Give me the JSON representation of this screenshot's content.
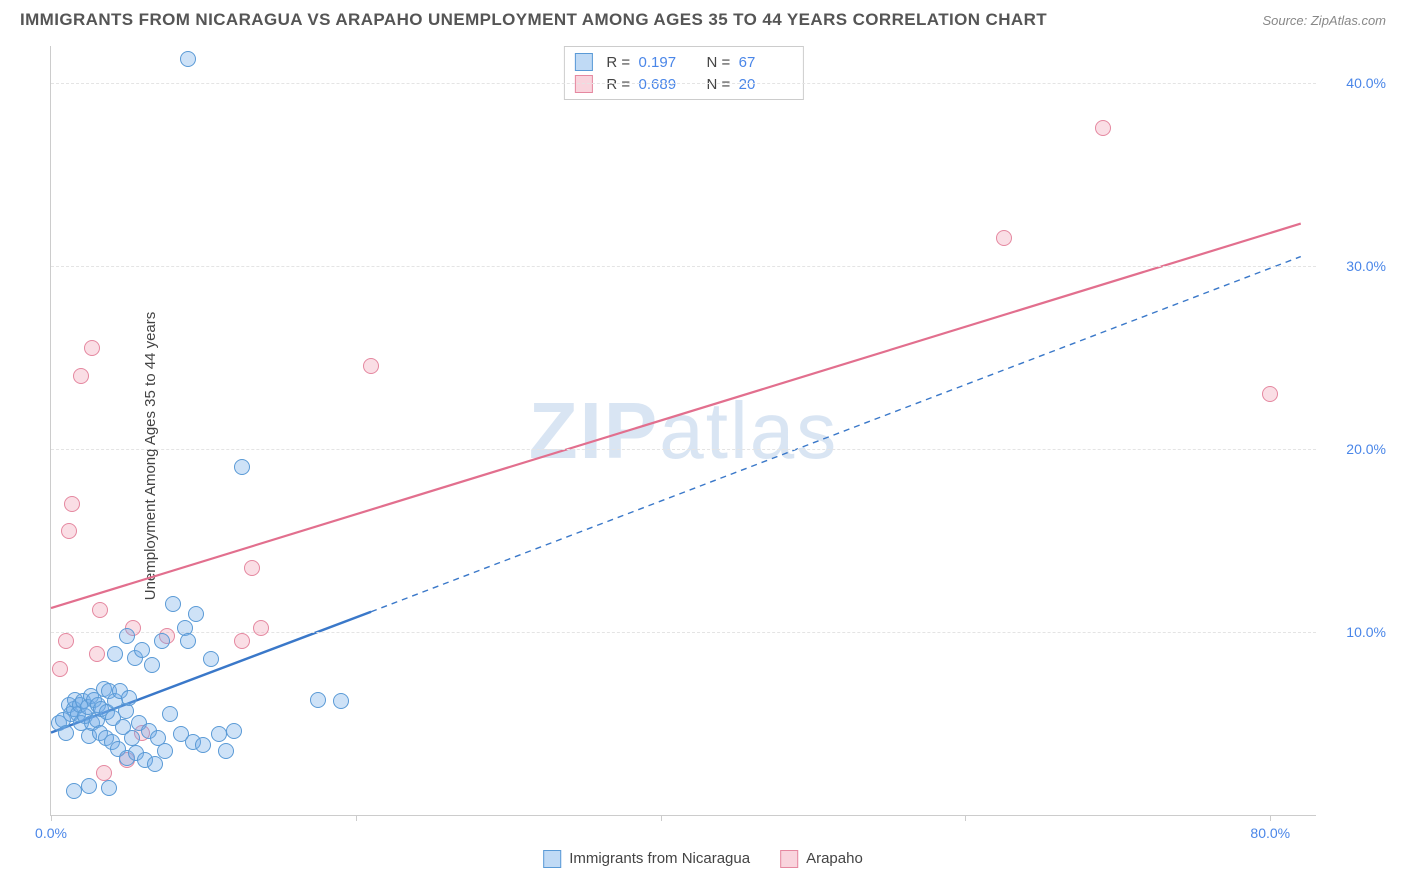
{
  "title": "IMMIGRANTS FROM NICARAGUA VS ARAPAHO UNEMPLOYMENT AMONG AGES 35 TO 44 YEARS CORRELATION CHART",
  "source": "Source: ZipAtlas.com",
  "ylabel": "Unemployment Among Ages 35 to 44 years",
  "watermark": "ZIPatlas",
  "chart": {
    "type": "scatter",
    "xlim": [
      0,
      83
    ],
    "ylim": [
      0,
      42
    ],
    "xticks": [
      0,
      20,
      40,
      60,
      80
    ],
    "xtick_labels": {
      "0": "0.0%",
      "80": "80.0%"
    },
    "yticks": [
      10,
      20,
      30,
      40
    ],
    "ytick_labels": [
      "10.0%",
      "20.0%",
      "30.0%",
      "40.0%"
    ],
    "grid_color": "#e4e4e4",
    "axis_color": "#cccccc",
    "background": "#ffffff",
    "marker_size": 16,
    "series": {
      "blue": {
        "label": "Immigrants from Nicaragua",
        "fill": "rgba(116,172,232,0.35)",
        "stroke": "#5a9ad6",
        "line_color": "#3a78c9",
        "points": [
          [
            0.5,
            5.0
          ],
          [
            0.8,
            5.2
          ],
          [
            1.0,
            4.5
          ],
          [
            1.2,
            6.0
          ],
          [
            1.3,
            5.5
          ],
          [
            1.5,
            5.8
          ],
          [
            1.6,
            6.3
          ],
          [
            1.8,
            5.5
          ],
          [
            1.9,
            6.0
          ],
          [
            2.0,
            5.0
          ],
          [
            2.1,
            6.2
          ],
          [
            2.2,
            5.4
          ],
          [
            2.4,
            5.9
          ],
          [
            2.5,
            4.3
          ],
          [
            2.6,
            6.5
          ],
          [
            2.7,
            5.0
          ],
          [
            2.8,
            6.3
          ],
          [
            3.0,
            5.2
          ],
          [
            3.1,
            6.0
          ],
          [
            3.2,
            4.5
          ],
          [
            3.3,
            5.8
          ],
          [
            3.5,
            6.9
          ],
          [
            3.6,
            4.2
          ],
          [
            3.7,
            5.6
          ],
          [
            3.8,
            6.8
          ],
          [
            4.0,
            4.0
          ],
          [
            4.1,
            5.3
          ],
          [
            4.2,
            6.2
          ],
          [
            4.4,
            3.6
          ],
          [
            4.5,
            6.8
          ],
          [
            4.7,
            4.8
          ],
          [
            4.9,
            5.7
          ],
          [
            5.0,
            3.1
          ],
          [
            5.1,
            6.4
          ],
          [
            5.3,
            4.2
          ],
          [
            5.5,
            8.6
          ],
          [
            5.6,
            3.4
          ],
          [
            5.8,
            5.0
          ],
          [
            6.0,
            9.0
          ],
          [
            6.2,
            3.0
          ],
          [
            6.4,
            4.6
          ],
          [
            6.6,
            8.2
          ],
          [
            6.8,
            2.8
          ],
          [
            7.0,
            4.2
          ],
          [
            7.3,
            9.5
          ],
          [
            7.5,
            3.5
          ],
          [
            7.8,
            5.5
          ],
          [
            8.0,
            11.5
          ],
          [
            8.5,
            4.4
          ],
          [
            8.8,
            10.2
          ],
          [
            9.0,
            9.5
          ],
          [
            9.3,
            4.0
          ],
          [
            9.5,
            11.0
          ],
          [
            10.0,
            3.8
          ],
          [
            10.5,
            8.5
          ],
          [
            11.0,
            4.4
          ],
          [
            11.5,
            3.5
          ],
          [
            12.0,
            4.6
          ],
          [
            17.5,
            6.3
          ],
          [
            19.0,
            6.2
          ],
          [
            9.0,
            41.3
          ],
          [
            12.5,
            19.0
          ],
          [
            1.5,
            1.3
          ],
          [
            2.5,
            1.6
          ],
          [
            3.8,
            1.5
          ],
          [
            4.2,
            8.8
          ],
          [
            5.0,
            9.8
          ]
        ],
        "regression": {
          "x1": 0,
          "y1": 4.5,
          "x2": 21,
          "y2": 11.1,
          "ext_x2": 82,
          "ext_y2": 30.5
        }
      },
      "pink": {
        "label": "Arapaho",
        "fill": "rgba(242,160,180,0.35)",
        "stroke": "#e588a0",
        "line_color": "#e26f8e",
        "points": [
          [
            0.6,
            8.0
          ],
          [
            1.2,
            15.5
          ],
          [
            1.4,
            17.0
          ],
          [
            2.0,
            24.0
          ],
          [
            2.7,
            25.5
          ],
          [
            1.0,
            9.5
          ],
          [
            3.2,
            11.2
          ],
          [
            3.0,
            8.8
          ],
          [
            5.4,
            10.2
          ],
          [
            6.0,
            4.5
          ],
          [
            7.6,
            9.8
          ],
          [
            12.5,
            9.5
          ],
          [
            13.8,
            10.2
          ],
          [
            3.5,
            2.3
          ],
          [
            13.2,
            13.5
          ],
          [
            21.0,
            24.5
          ],
          [
            62.5,
            31.5
          ],
          [
            69.0,
            37.5
          ],
          [
            80.0,
            23.0
          ],
          [
            5.0,
            3.0
          ]
        ],
        "regression": {
          "x1": 0,
          "y1": 11.3,
          "x2": 82,
          "y2": 32.3
        }
      }
    }
  },
  "stats_legend": {
    "rows": [
      {
        "color": "blue",
        "R": "0.197",
        "N": "67"
      },
      {
        "color": "pink",
        "R": "0.689",
        "N": "20"
      }
    ],
    "R_label": "R  =",
    "N_label": "N  ="
  },
  "series_legend": {
    "blue": "Immigrants from Nicaragua",
    "pink": "Arapaho"
  }
}
